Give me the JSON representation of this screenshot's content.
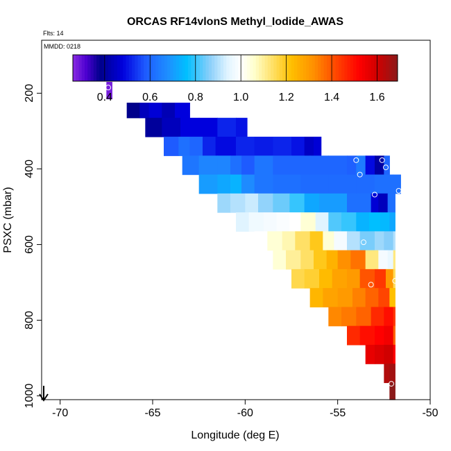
{
  "chart_data": {
    "type": "heatmap",
    "title": "ORCAS RF14vlonS Methyl_Iodide_AWAS",
    "flts_label": "Flts: 14",
    "mmdd_label": "MMDD: 0218",
    "xlabel": "Longitude (deg E)",
    "ylabel": "PSXC (mbar)",
    "xlim": [
      -71,
      -50
    ],
    "ylim": [
      1010,
      60
    ],
    "x_ticks": [
      -70,
      -65,
      -60,
      -55,
      -50
    ],
    "x_tick_labels": [
      "-70",
      "-65",
      "-60",
      "-55",
      "-50"
    ],
    "y_ticks": [
      200,
      400,
      600,
      800,
      1000
    ],
    "y_tick_labels": [
      "200",
      "400",
      "600",
      "800",
      "1000"
    ],
    "colorbar": {
      "range": [
        0.26,
        1.69
      ],
      "ticks": [
        0.4,
        0.6,
        0.8,
        1.0,
        1.2,
        1.4,
        1.6
      ],
      "tick_labels": [
        "0.4",
        "0.6",
        "0.8",
        "1.0",
        "1.2",
        "1.4",
        "1.6"
      ],
      "major_lines": [
        0.4,
        0.6,
        0.8,
        1.0,
        1.2,
        1.4,
        1.6
      ],
      "stops": [
        {
          "v": 0.26,
          "c": "#8a2be2"
        },
        {
          "v": 0.32,
          "c": "#4b00d0"
        },
        {
          "v": 0.38,
          "c": "#00008b"
        },
        {
          "v": 0.48,
          "c": "#0000dd"
        },
        {
          "v": 0.58,
          "c": "#1e5bff"
        },
        {
          "v": 0.68,
          "c": "#1e90ff"
        },
        {
          "v": 0.76,
          "c": "#00bfff"
        },
        {
          "v": 0.86,
          "c": "#87cefa"
        },
        {
          "v": 0.94,
          "c": "#e0f4ff"
        },
        {
          "v": 1.0,
          "c": "#ffffff"
        },
        {
          "v": 1.06,
          "c": "#ffffcc"
        },
        {
          "v": 1.14,
          "c": "#ffe066"
        },
        {
          "v": 1.22,
          "c": "#ffc000"
        },
        {
          "v": 1.32,
          "c": "#ff9000"
        },
        {
          "v": 1.42,
          "c": "#ff4500"
        },
        {
          "v": 1.52,
          "c": "#ff0000"
        },
        {
          "v": 1.6,
          "c": "#d00000"
        },
        {
          "v": 1.69,
          "c": "#8b1a1a"
        }
      ]
    },
    "bands": [
      {
        "p0": 170,
        "p1": 215,
        "xs": [
          -67.5,
          -67.2
        ],
        "vals": [
          0.28
        ]
      },
      {
        "p0": 225,
        "p1": 265,
        "xs": [
          -66.4,
          -65.7,
          -65.2,
          -64.5,
          -63.8,
          -63.0
        ],
        "vals": [
          0.38,
          0.44,
          0.47,
          0.43,
          0.48
        ]
      },
      {
        "p0": 265,
        "p1": 315,
        "xs": [
          -65.4,
          -64.5,
          -63.5,
          -62.5,
          -61.5,
          -60.5,
          -59.9
        ],
        "vals": [
          0.4,
          0.44,
          0.48,
          0.48,
          0.52,
          0.5
        ]
      },
      {
        "p0": 315,
        "p1": 365,
        "xs": [
          -64.4,
          -63.6,
          -63.0,
          -62.3,
          -61.6,
          -60.5,
          -59.5,
          -58.5,
          -57.5,
          -56.8,
          -56.3,
          -55.9
        ],
        "vals": [
          0.58,
          0.62,
          0.6,
          0.52,
          0.49,
          0.52,
          0.51,
          0.52,
          0.5,
          0.45,
          0.47
        ]
      },
      {
        "p0": 365,
        "p1": 415,
        "xs": [
          -63.4,
          -62.5,
          -61.5,
          -60.8,
          -60.2,
          -59.5,
          -58.5,
          -57.5,
          -56.5,
          -55.5,
          -54.5,
          -54.0,
          -53.5,
          -53.0,
          -52.5,
          -52.2
        ],
        "vals": [
          0.63,
          0.66,
          0.66,
          0.62,
          0.58,
          0.63,
          0.6,
          0.6,
          0.6,
          0.6,
          0.59,
          0.64,
          0.49,
          0.41,
          0.6
        ]
      },
      {
        "p0": 415,
        "p1": 465,
        "xs": [
          -62.5,
          -61.5,
          -60.8,
          -60.2,
          -59.5,
          -58.5,
          -57.0,
          -55.5,
          -54.0,
          -53.0,
          -52.0,
          -51.6
        ],
        "vals": [
          0.7,
          0.72,
          0.74,
          0.67,
          0.63,
          0.62,
          0.61,
          0.61,
          0.61,
          0.62,
          0.62
        ]
      },
      {
        "p0": 465,
        "p1": 515,
        "xs": [
          -61.5,
          -60.8,
          -60.0,
          -59.3,
          -58.5,
          -57.6,
          -56.8,
          -56.0,
          -55.2,
          -54.5,
          -53.8,
          -53.2,
          -52.8,
          -52.3,
          -51.9
        ],
        "vals": [
          0.88,
          0.9,
          0.92,
          0.87,
          0.84,
          0.8,
          0.72,
          0.7,
          0.7,
          0.62,
          0.62,
          0.47,
          0.44,
          0.62
        ]
      },
      {
        "p0": 515,
        "p1": 565,
        "xs": [
          -60.5,
          -59.8,
          -59.0,
          -58.3,
          -57.6,
          -57.0,
          -56.2,
          -55.5,
          -54.8,
          -54.0,
          -53.3,
          -52.7,
          -52.2,
          -51.9
        ],
        "vals": [
          0.94,
          0.97,
          0.98,
          0.99,
          1.0,
          1.05,
          0.94,
          0.82,
          0.8,
          0.74,
          0.76,
          0.75,
          0.72
        ]
      },
      {
        "p0": 565,
        "p1": 615,
        "xs": [
          -59.5,
          -58.8,
          -58.0,
          -57.3,
          -56.5,
          -55.8,
          -55.2,
          -54.5,
          -53.8,
          -53.0,
          -52.5,
          -52.0,
          -51.9
        ],
        "vals": [
          1.0,
          1.05,
          1.08,
          1.14,
          1.2,
          1.05,
          0.98,
          0.9,
          0.85,
          0.88,
          0.86,
          0.9
        ]
      },
      {
        "p0": 615,
        "p1": 665,
        "xs": [
          -58.5,
          -57.8,
          -57.0,
          -56.3,
          -55.6,
          -55.0,
          -54.3,
          -53.5,
          -52.8,
          -52.3,
          -52.0,
          -51.9
        ],
        "vals": [
          1.05,
          1.1,
          1.14,
          1.2,
          1.25,
          1.32,
          1.36,
          1.12,
          0.98,
          0.96,
          1.12
        ]
      },
      {
        "p0": 665,
        "p1": 715,
        "xs": [
          -57.5,
          -56.8,
          -56.0,
          -55.3,
          -54.5,
          -53.8,
          -53.0,
          -52.4,
          -52.0,
          -51.9
        ],
        "vals": [
          1.16,
          1.18,
          1.23,
          1.28,
          1.3,
          1.4,
          1.44,
          1.3,
          1.15
        ]
      },
      {
        "p0": 715,
        "p1": 765,
        "xs": [
          -56.5,
          -55.8,
          -55.0,
          -54.2,
          -53.5,
          -52.8,
          -52.2,
          -51.9
        ],
        "vals": [
          1.24,
          1.28,
          1.3,
          1.34,
          1.38,
          1.42,
          1.22
        ]
      },
      {
        "p0": 765,
        "p1": 815,
        "xs": [
          -55.5,
          -54.8,
          -54.0,
          -53.2,
          -52.5,
          -52.0,
          -51.9
        ],
        "vals": [
          1.33,
          1.35,
          1.38,
          1.46,
          1.5,
          1.44
        ]
      },
      {
        "p0": 815,
        "p1": 865,
        "xs": [
          -54.5,
          -53.8,
          -53.0,
          -52.5,
          -52.0,
          -51.9
        ],
        "vals": [
          1.46,
          1.5,
          1.52,
          1.54,
          1.38
        ]
      },
      {
        "p0": 865,
        "p1": 915,
        "xs": [
          -53.5,
          -53.0,
          -52.5,
          -52.0,
          -51.9
        ],
        "vals": [
          1.56,
          1.58,
          1.6,
          1.52
        ]
      },
      {
        "p0": 915,
        "p1": 965,
        "xs": [
          -52.5,
          -52.2,
          -51.9
        ],
        "vals": [
          1.64,
          1.66
        ]
      },
      {
        "p0": 965,
        "p1": 1010,
        "xs": [
          -52.2,
          -51.9
        ],
        "vals": [
          1.69
        ]
      }
    ],
    "samples": [
      {
        "lon": -67.4,
        "p": 185
      },
      {
        "lon": -54.0,
        "p": 377
      },
      {
        "lon": -52.6,
        "p": 377
      },
      {
        "lon": -52.4,
        "p": 396
      },
      {
        "lon": -53.8,
        "p": 415
      },
      {
        "lon": -51.7,
        "p": 458
      },
      {
        "lon": -53.0,
        "p": 468
      },
      {
        "lon": -53.6,
        "p": 594
      },
      {
        "lon": -53.2,
        "p": 706
      },
      {
        "lon": -51.9,
        "p": 696
      },
      {
        "lon": -52.1,
        "p": 968
      }
    ]
  }
}
